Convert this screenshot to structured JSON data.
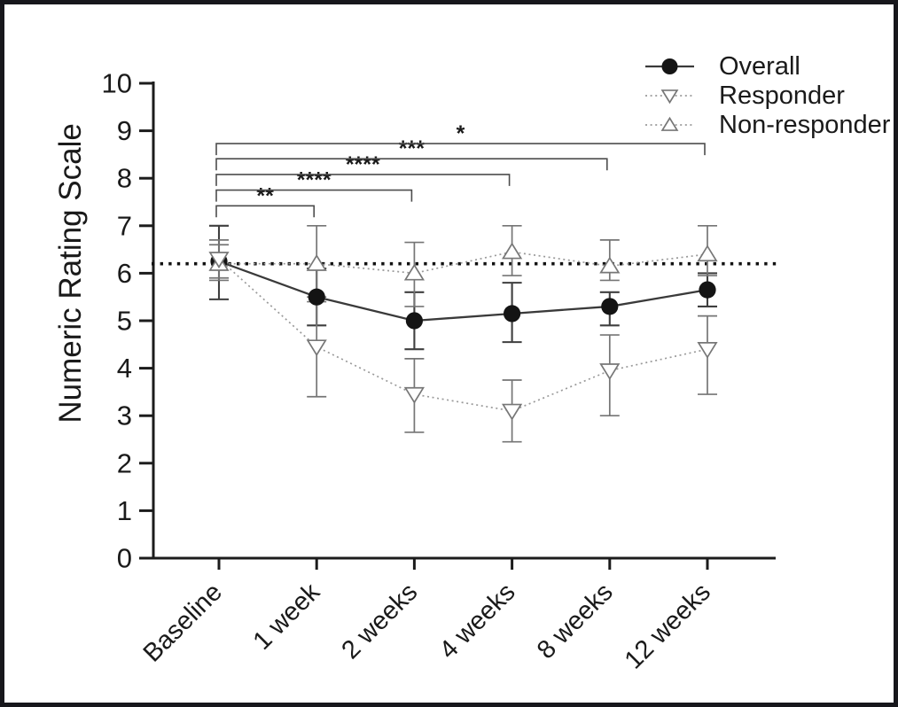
{
  "chart_data": {
    "type": "line",
    "title": "",
    "ylabel": "Numeric Rating  Scale",
    "xlabel": "",
    "categories": [
      "Baseline",
      "1 week",
      "2 weeks",
      "4 weeks",
      "8 weeks",
      "12 weeks"
    ],
    "ylim": [
      0,
      10
    ],
    "yticks": [
      0,
      1,
      2,
      3,
      4,
      5,
      6,
      7,
      8,
      9,
      10
    ],
    "grid": "off",
    "reference_line": {
      "y": 6.2,
      "style": "dotted",
      "color": "#111111"
    },
    "legend": {
      "position": "top-right",
      "entries": [
        {
          "label": "Overall",
          "marker": "filled-circle",
          "line": "solid"
        },
        {
          "label": "Responder",
          "marker": "open-triangle-down",
          "line": "dotted"
        },
        {
          "label": "Non-responder",
          "marker": "open-triangle-up",
          "line": "dotted"
        }
      ]
    },
    "series": [
      {
        "name": "Overall",
        "marker": "filled-circle",
        "line": "solid",
        "line_color": "#3a3a3a",
        "err_color": "#3f3f3f",
        "values": [
          6.25,
          5.5,
          5.0,
          5.15,
          5.3,
          5.65
        ],
        "err_lo": [
          5.45,
          4.9,
          4.4,
          4.55,
          4.9,
          5.3
        ],
        "err_hi": [
          7.0,
          6.1,
          5.6,
          5.8,
          5.6,
          6.0
        ]
      },
      {
        "name": "Responder",
        "marker": "open-triangle-down",
        "line": "dotted",
        "line_color": "#9a9a9a",
        "err_color": "#757575",
        "values": [
          6.3,
          4.45,
          3.45,
          3.1,
          3.95,
          4.4
        ],
        "err_lo": [
          5.9,
          3.4,
          2.65,
          2.45,
          3.0,
          3.45
        ],
        "err_hi": [
          6.7,
          5.5,
          4.2,
          3.75,
          4.7,
          5.1
        ]
      },
      {
        "name": "Non-responder",
        "marker": "open-triangle-up",
        "line": "dotted",
        "line_color": "#9a9a9a",
        "err_color": "#757575",
        "values": [
          6.2,
          6.2,
          6.0,
          6.45,
          6.15,
          6.4
        ],
        "err_lo": [
          5.85,
          5.4,
          5.3,
          5.95,
          5.85,
          5.95
        ],
        "err_hi": [
          6.6,
          7.0,
          6.65,
          7.0,
          6.7,
          7.0
        ]
      }
    ],
    "significance_brackets": [
      {
        "from": "Baseline",
        "to": "1 week",
        "label": "**",
        "y": 7.42
      },
      {
        "from": "Baseline",
        "to": "2 weeks",
        "label": "****",
        "y": 7.75
      },
      {
        "from": "Baseline",
        "to": "4 weeks",
        "label": "****",
        "y": 8.08
      },
      {
        "from": "Baseline",
        "to": "8 weeks",
        "label": "***",
        "y": 8.41
      },
      {
        "from": "Baseline",
        "to": "12 weeks",
        "label": "*",
        "y": 8.73
      }
    ],
    "colors": {
      "axis": "#1c1c1c",
      "marker_fill": "#141414",
      "open_marker_stroke": "#777777",
      "bracket": "#4d4d4d",
      "text": "#1a1a1a"
    }
  }
}
